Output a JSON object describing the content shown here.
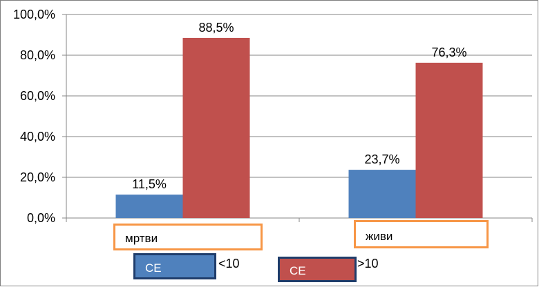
{
  "chart_data": {
    "type": "bar",
    "categories": [
      "мртви",
      "живи"
    ],
    "series": [
      {
        "values": [
          11.5,
          23.7
        ],
        "color": "#4f81bd",
        "legend_box": "CE",
        "legend_text": "<10"
      },
      {
        "values": [
          88.5,
          76.3
        ],
        "color": "#c0504d",
        "legend_box": "CE",
        "legend_text": ">10"
      }
    ],
    "data_labels": [
      [
        "11,5%",
        "23,7%"
      ],
      [
        "88,5%",
        "76,3%"
      ]
    ],
    "y_ticks": [
      "0,0%",
      "20,0%",
      "40,0%",
      "60,0%",
      "80,0%",
      "100,0%"
    ],
    "ylim": [
      0,
      100
    ],
    "grid": true,
    "legend_placement": "bottom",
    "category_box_color": "#f79646"
  }
}
